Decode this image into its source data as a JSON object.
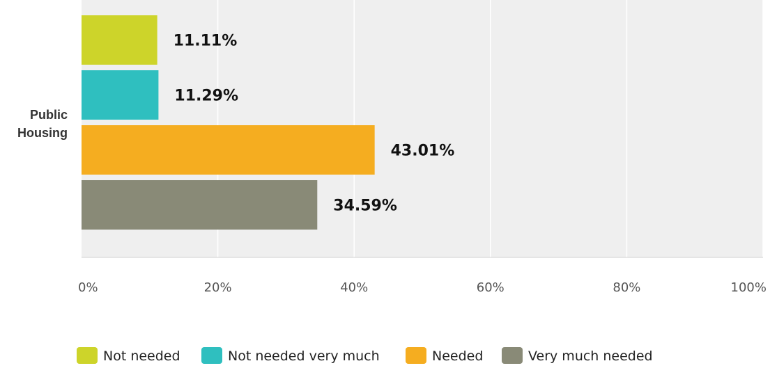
{
  "chart_data": {
    "type": "bar",
    "orientation": "horizontal",
    "categories": [
      "Public Housing"
    ],
    "series": [
      {
        "name": "Not needed",
        "values": [
          11.11
        ],
        "color": "#cdd42a"
      },
      {
        "name": "Not needed very much",
        "values": [
          11.29
        ],
        "color": "#2fbfbf"
      },
      {
        "name": "Needed",
        "values": [
          43.01
        ],
        "color": "#f5ad20"
      },
      {
        "name": "Very much needed",
        "values": [
          34.59
        ],
        "color": "#898a77"
      }
    ],
    "value_labels": [
      "11.11%",
      "11.29%",
      "43.01%",
      "34.59%"
    ],
    "x_ticks": [
      "0%",
      "20%",
      "40%",
      "60%",
      "80%",
      "100%"
    ],
    "xlim": [
      0,
      100
    ],
    "grid": true,
    "legend_position": "bottom",
    "plot_background": "#efefef",
    "title": "",
    "xlabel": "",
    "ylabel": ""
  },
  "axis": {
    "category_label_line1": "Public",
    "category_label_line2": "Housing"
  },
  "legend": {
    "items": [
      "Not needed",
      "Not needed very much",
      "Needed",
      "Very much needed"
    ]
  }
}
